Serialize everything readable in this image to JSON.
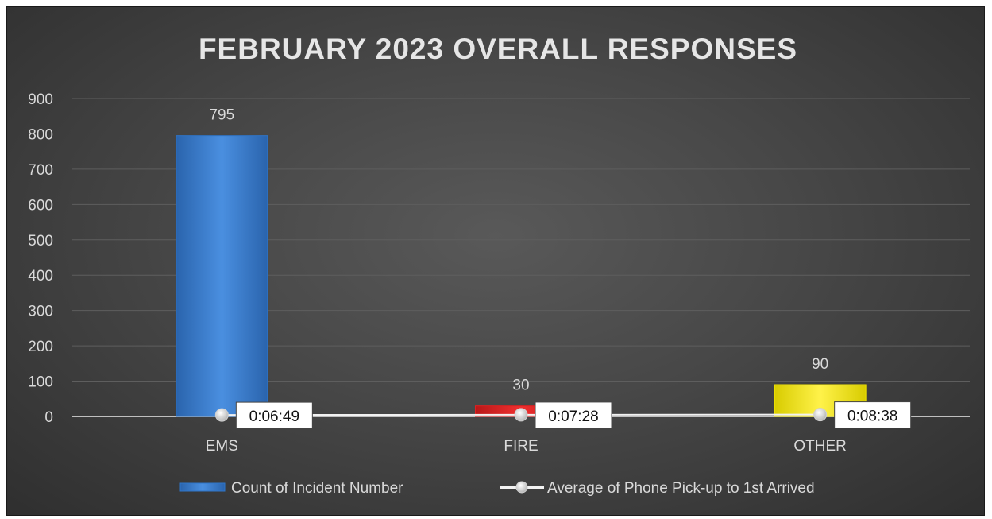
{
  "chart_data": {
    "type": "bar",
    "title": "FEBRUARY 2023 OVERALL RESPONSES",
    "categories": [
      "EMS",
      "FIRE",
      "OTHER"
    ],
    "ylim": [
      0,
      900
    ],
    "yticks": [
      0,
      100,
      200,
      300,
      400,
      500,
      600,
      700,
      800,
      900
    ],
    "grid": true,
    "legend_position": "bottom",
    "series": [
      {
        "name": "Count of Incident Number",
        "type": "bar",
        "values": [
          795,
          30,
          90
        ],
        "data_labels": [
          "795",
          "30",
          "90"
        ],
        "colors": [
          "#2e75c9",
          "#e02020",
          "#f2e600"
        ]
      },
      {
        "name": "Average of Phone Pick-up to 1st Arrived",
        "type": "line",
        "values": [
          "0:06:49",
          "0:07:28",
          "0:08:38"
        ],
        "data_labels": [
          "0:06:49",
          "0:07:28",
          "0:08:38"
        ],
        "color": "#f2f2f2"
      }
    ]
  }
}
